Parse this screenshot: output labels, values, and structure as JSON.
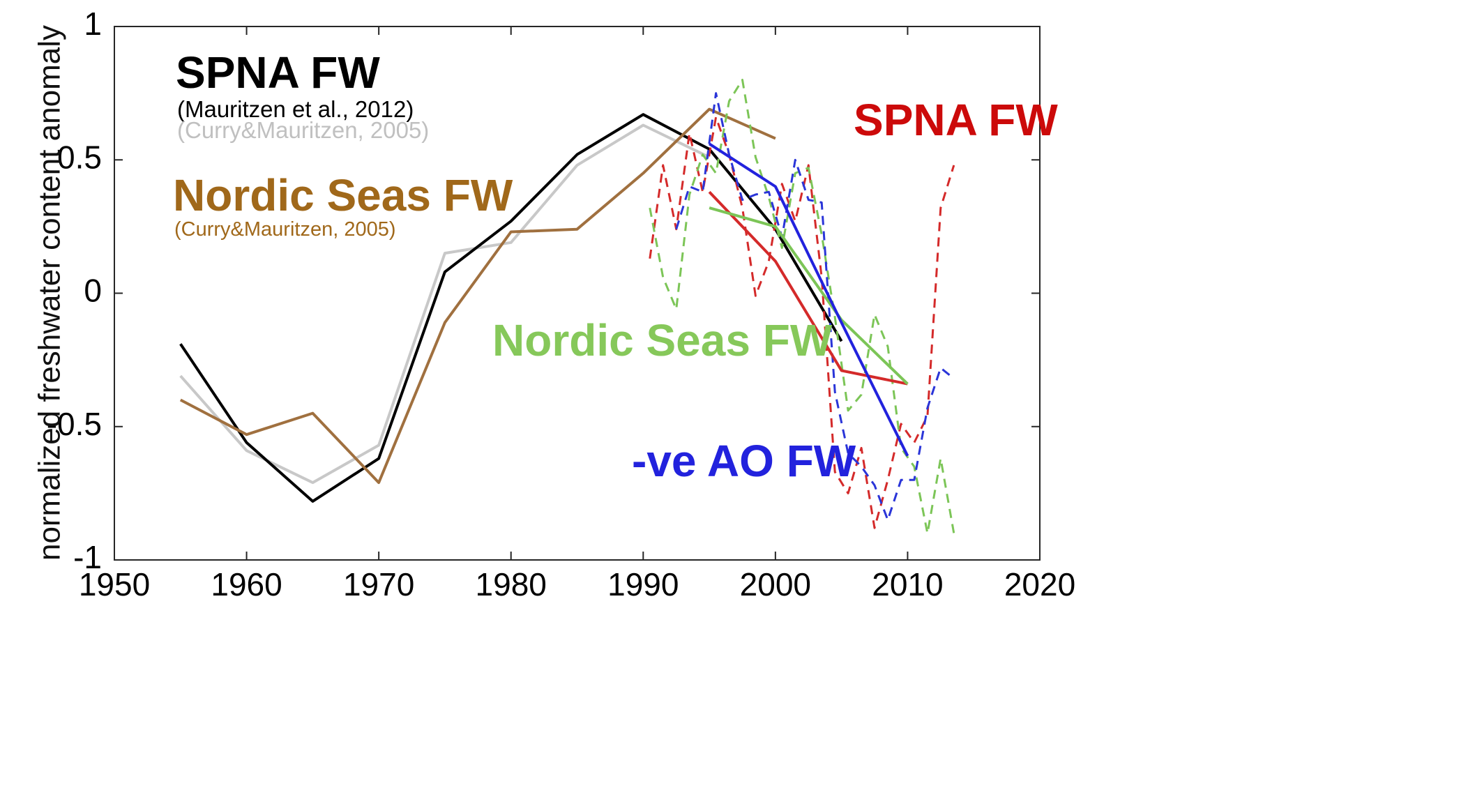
{
  "chart_data": {
    "type": "line",
    "xlabel": "",
    "ylabel": "normalized freshwater content anomaly",
    "xlim": [
      1950,
      2020
    ],
    "ylim": [
      -1,
      1
    ],
    "xticks": [
      "1950",
      "1960",
      "1970",
      "1980",
      "1990",
      "2000",
      "2010",
      "2020"
    ],
    "yticks": [
      "1",
      "0.5",
      "0",
      "-0.5",
      "-1"
    ],
    "grid": false,
    "series": [
      {
        "name": "SPNA FW (Curry&Mauritzen, 2005)",
        "color": "#c8c8c8",
        "style": "solid",
        "x": [
          1955,
          1960,
          1965,
          1970,
          1975,
          1980,
          1985,
          1990,
          1995
        ],
        "y": [
          -0.31,
          -0.59,
          -0.71,
          -0.57,
          0.15,
          0.19,
          0.48,
          0.63,
          0.51
        ]
      },
      {
        "name": "SPNA FW (Mauritzen et al., 2012)",
        "color": "#000000",
        "style": "solid",
        "x": [
          1955,
          1960,
          1965,
          1970,
          1975,
          1980,
          1985,
          1990,
          1995,
          2000,
          2005
        ],
        "y": [
          -0.19,
          -0.56,
          -0.78,
          -0.62,
          0.08,
          0.27,
          0.52,
          0.67,
          0.54,
          0.24,
          -0.18
        ]
      },
      {
        "name": "Nordic Seas FW (Curry&Mauritzen, 2005)",
        "color": "#a0703f",
        "style": "solid",
        "x": [
          1955,
          1960,
          1965,
          1970,
          1975,
          1980,
          1985,
          1990,
          1995,
          2000
        ],
        "y": [
          -0.4,
          -0.53,
          -0.45,
          -0.71,
          -0.11,
          0.23,
          0.24,
          0.45,
          0.69,
          0.58
        ]
      },
      {
        "color": "#d42a2a",
        "style": "dashed",
        "x": [
          1990.5,
          1991.5,
          1992.5,
          1993.5,
          1994.5,
          1995.5,
          1996.5,
          1997.5,
          1998.5,
          1999.5,
          2000.5,
          2001.5,
          2002.5,
          2003.5,
          2004.5,
          2005.5,
          2006.5,
          2007.5,
          2008.5,
          2009.5,
          2010.5,
          2011.5,
          2012.5,
          2013.5
        ],
        "y": [
          0.13,
          0.48,
          0.24,
          0.6,
          0.38,
          0.66,
          0.52,
          0.32,
          -0.01,
          0.12,
          0.41,
          0.27,
          0.48,
          0.06,
          -0.67,
          -0.75,
          -0.58,
          -0.88,
          -0.7,
          -0.49,
          -0.56,
          -0.46,
          0.32,
          0.48
        ]
      },
      {
        "color": "#7cc557",
        "style": "dashed",
        "x": [
          1990.5,
          1991.5,
          1992.5,
          1993.5,
          1994.5,
          1995.5,
          1996.5,
          1997.5,
          1998.5,
          1999.5,
          2000.5,
          2001.5,
          2002.5,
          2003.5,
          2004.5,
          2005.5,
          2006.5,
          2007.5,
          2008.5,
          2009.5,
          2010.5,
          2011.5,
          2012.5,
          2013.5
        ],
        "y": [
          0.32,
          0.06,
          -0.06,
          0.37,
          0.52,
          0.45,
          0.72,
          0.8,
          0.51,
          0.36,
          0.17,
          0.45,
          0.47,
          0.22,
          -0.09,
          -0.44,
          -0.38,
          -0.08,
          -0.2,
          -0.58,
          -0.65,
          -0.9,
          -0.62,
          -0.9
        ]
      },
      {
        "color": "#2a35d8",
        "style": "dashed",
        "x": [
          1992.5,
          1993.5,
          1994.5,
          1995.5,
          1996.5,
          1997.5,
          1998.5,
          1999.5,
          2000.5,
          2001.5,
          2002.5,
          2003.5,
          2004.5,
          2005.5,
          2006.5,
          2007.5,
          2008.5,
          2009.5,
          2010.5,
          2011.5,
          2012.5,
          2013.5
        ],
        "y": [
          0.24,
          0.4,
          0.38,
          0.75,
          0.52,
          0.35,
          0.37,
          0.38,
          0.21,
          0.5,
          0.35,
          0.34,
          -0.37,
          -0.6,
          -0.65,
          -0.72,
          -0.85,
          -0.7,
          -0.7,
          -0.43,
          -0.28,
          -0.32
        ]
      },
      {
        "color": "#d42a2a",
        "style": "solid",
        "x": [
          1995,
          2000,
          2005,
          2010
        ],
        "y": [
          0.38,
          0.12,
          -0.29,
          -0.34
        ]
      },
      {
        "color": "#7cc557",
        "style": "solid",
        "x": [
          1995,
          2000,
          2005,
          2010
        ],
        "y": [
          0.32,
          0.25,
          -0.1,
          -0.34
        ]
      },
      {
        "color": "#2222dd",
        "style": "solid",
        "x": [
          1995,
          2000,
          2005,
          2010
        ],
        "y": [
          0.56,
          0.4,
          -0.11,
          -0.61
        ]
      }
    ]
  },
  "annotations": {
    "spna_fw_title": "SPNA FW",
    "spna_ref1": "(Mauritzen et al., 2012)",
    "spna_ref2": "(Curry&Mauritzen, 2005)",
    "nordic_title": "Nordic Seas FW",
    "nordic_ref": "(Curry&Mauritzen, 2005)",
    "spna_fw_red": "SPNA FW",
    "nordic_green": "Nordic Seas FW",
    "ao_blue": "-ve AO FW"
  },
  "colors": {
    "black": "#000000",
    "gray": "#c0c0c0",
    "brown": "#a0681a",
    "red": "#cc0a0a",
    "green": "#86c85a",
    "blue": "#2222dd"
  }
}
